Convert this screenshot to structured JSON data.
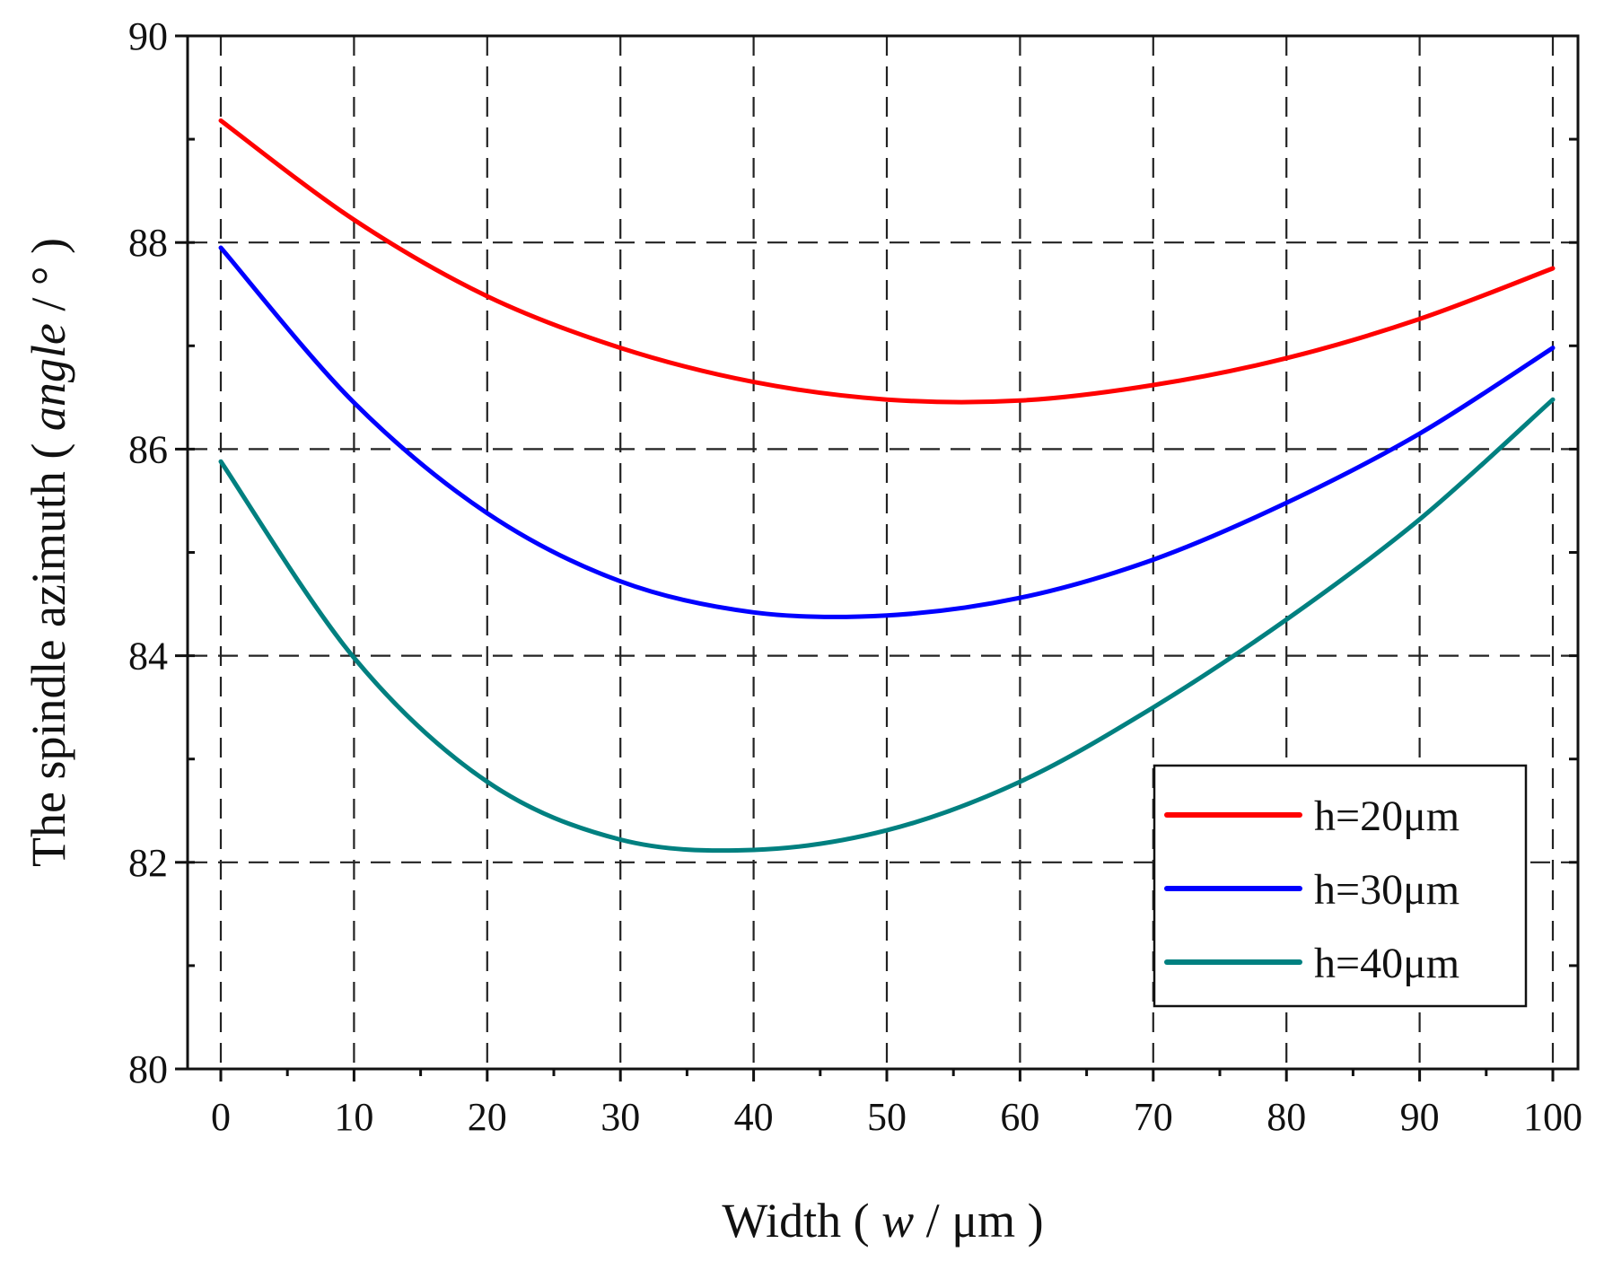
{
  "chart_data": {
    "type": "line",
    "title": "",
    "xlabel_prefix": "Width",
    "xlabel_var": "w",
    "xlabel_unit": "μm",
    "ylabel_prefix": "The spindle azimuth",
    "ylabel_var": "angle",
    "ylabel_unit": "°",
    "xlim": [
      0,
      100
    ],
    "ylim": [
      80,
      90
    ],
    "xticks": [
      0,
      10,
      20,
      30,
      40,
      50,
      60,
      70,
      80,
      90,
      100
    ],
    "yticks": [
      80,
      82,
      84,
      86,
      88,
      90
    ],
    "x_grid": [
      0,
      10,
      20,
      30,
      40,
      50,
      60,
      70,
      80,
      90,
      100
    ],
    "y_grid": [
      82,
      84,
      86,
      88
    ],
    "legend_position": "bottom-right",
    "x": [
      0,
      10,
      20,
      30,
      40,
      50,
      60,
      70,
      80,
      90,
      100
    ],
    "series": [
      {
        "name": "h=20μm",
        "color": "#ff0000",
        "values": [
          89.18,
          88.22,
          87.48,
          86.98,
          86.65,
          86.48,
          86.47,
          86.62,
          86.88,
          87.26,
          87.75
        ]
      },
      {
        "name": "h=30μm",
        "color": "#0000ff",
        "values": [
          87.95,
          86.45,
          85.38,
          84.72,
          84.42,
          84.39,
          84.56,
          84.93,
          85.48,
          86.15,
          86.98
        ]
      },
      {
        "name": "h=40μm",
        "color": "#008080",
        "values": [
          85.88,
          83.98,
          82.78,
          82.22,
          82.12,
          82.31,
          82.78,
          83.5,
          84.35,
          85.32,
          86.48
        ]
      }
    ]
  }
}
